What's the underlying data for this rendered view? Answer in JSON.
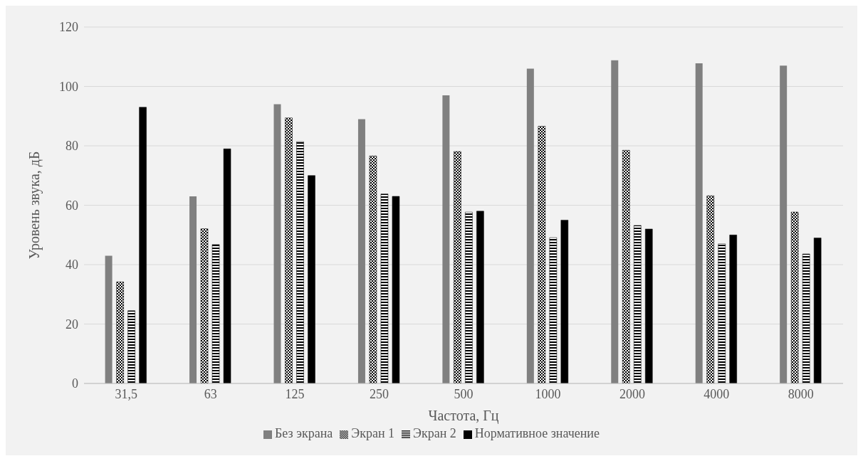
{
  "chart_data": {
    "type": "bar",
    "xlabel": "Частота, Гц",
    "ylabel": "Уровень звука, дБ",
    "categories": [
      "31,5",
      "63",
      "125",
      "250",
      "500",
      "1000",
      "2000",
      "4000",
      "8000"
    ],
    "series": [
      {
        "name": "Без экрана",
        "color": "#808080",
        "values": [
          43,
          63,
          94,
          89,
          97,
          106,
          108.8,
          107.8,
          107
        ]
      },
      {
        "name": "Экран 1",
        "color": "#000000",
        "values": [
          34.2,
          52.1,
          89.4,
          76.6,
          78.1,
          86.6,
          78.5,
          63.2,
          57.7
        ]
      },
      {
        "name": "Экран 2",
        "color": "#000000",
        "values": [
          24.5,
          46.8,
          81.4,
          63.8,
          57.7,
          49.1,
          53.2,
          47,
          43.6
        ]
      },
      {
        "name": "Нормативное значение",
        "color": "#000000",
        "values": [
          93,
          79,
          70,
          63,
          58,
          55,
          52,
          50,
          49
        ]
      }
    ],
    "ylim": [
      0,
      120
    ],
    "yticks": [
      0,
      20,
      40,
      60,
      80,
      100,
      120
    ],
    "grid": "y",
    "legend": "bottom"
  }
}
